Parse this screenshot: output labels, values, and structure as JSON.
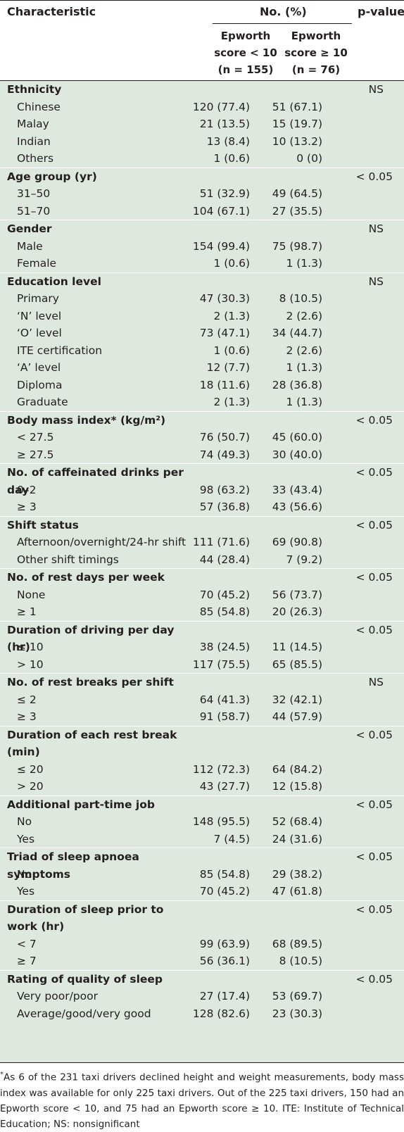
{
  "header": {
    "characteristic": "Characteristic",
    "no_pct": "No. (%)",
    "p_value": "p-value",
    "col1_line1": "Epworth",
    "col1_line2": "score < 10",
    "col1_line3": "(n = 155)",
    "col2_line1": "Epworth",
    "col2_line2": "score ≥ 10",
    "col2_line3": "(n = 76)"
  },
  "rows": [
    {
      "type": "cat",
      "label": "Ethnicity",
      "p": "NS"
    },
    {
      "type": "item",
      "label": "Chinese",
      "c1": "120 (77.4)",
      "c2": "51 (67.1)"
    },
    {
      "type": "item",
      "label": "Malay",
      "c1": "21 (13.5)",
      "c2": "15 (19.7)"
    },
    {
      "type": "item",
      "label": "Indian",
      "c1": "13 (8.4)",
      "c2": "10 (13.2)"
    },
    {
      "type": "item",
      "label": "Others",
      "c1": "1 (0.6)",
      "c2": "0 (0)"
    },
    {
      "type": "cat",
      "label": "Age group (yr)",
      "p": "< 0.05"
    },
    {
      "type": "item",
      "label": "31–50",
      "c1": "51 (32.9)",
      "c2": "49 (64.5)"
    },
    {
      "type": "item",
      "label": "51–70",
      "c1": "104 (67.1)",
      "c2": "27 (35.5)"
    },
    {
      "type": "cat",
      "label": "Gender",
      "p": "NS"
    },
    {
      "type": "item",
      "label": "Male",
      "c1": "154 (99.4)",
      "c2": "75 (98.7)"
    },
    {
      "type": "item",
      "label": "Female",
      "c1": "1 (0.6)",
      "c2": "1 (1.3)"
    },
    {
      "type": "cat",
      "label": "Education level",
      "p": "NS"
    },
    {
      "type": "item",
      "label": "Primary",
      "c1": "47 (30.3)",
      "c2": "8 (10.5)"
    },
    {
      "type": "item",
      "label": "‘N’ level",
      "c1": "2 (1.3)",
      "c2": "2 (2.6)"
    },
    {
      "type": "item",
      "label": "‘O’ level",
      "c1": "73 (47.1)",
      "c2": "34 (44.7)"
    },
    {
      "type": "item",
      "label": "ITE certification",
      "c1": "1 (0.6)",
      "c2": "2 (2.6)"
    },
    {
      "type": "item",
      "label": "‘A’ level",
      "c1": "12 (7.7)",
      "c2": "1 (1.3)"
    },
    {
      "type": "item",
      "label": "Diploma",
      "c1": "18 (11.6)",
      "c2": "28 (36.8)"
    },
    {
      "type": "item",
      "label": "Graduate",
      "c1": "2 (1.3)",
      "c2": "1 (1.3)"
    },
    {
      "type": "cat",
      "label": "Body mass index* (kg/m²)",
      "p": "< 0.05"
    },
    {
      "type": "item",
      "label": "< 27.5",
      "c1": "76 (50.7)",
      "c2": "45 (60.0)"
    },
    {
      "type": "item",
      "label": "≥ 27.5",
      "c1": "74 (49.3)",
      "c2": "30 (40.0)"
    },
    {
      "type": "cat",
      "label": "No. of caffeinated drinks per day",
      "p": "< 0.05"
    },
    {
      "type": "item",
      "label": "0–2",
      "c1": "98 (63.2)",
      "c2": "33 (43.4)"
    },
    {
      "type": "item",
      "label": "≥ 3",
      "c1": "57 (36.8)",
      "c2": "43 (56.6)"
    },
    {
      "type": "cat",
      "label": "Shift status",
      "p": "< 0.05"
    },
    {
      "type": "item",
      "label": "Afternoon/overnight/24-hr shift",
      "c1": "111 (71.6)",
      "c2": "69 (90.8)"
    },
    {
      "type": "item",
      "label": "Other shift timings",
      "c1": "44 (28.4)",
      "c2": "7 (9.2)"
    },
    {
      "type": "cat",
      "label": "No. of rest days per week",
      "p": "< 0.05"
    },
    {
      "type": "item",
      "label": "None",
      "c1": "70 (45.2)",
      "c2": "56 (73.7)"
    },
    {
      "type": "item",
      "label": "≥ 1",
      "c1": "85 (54.8)",
      "c2": "20 (26.3)"
    },
    {
      "type": "cat",
      "label": "Duration of driving per day (hr)",
      "p": "< 0.05"
    },
    {
      "type": "item",
      "label": "≤ 10",
      "c1": "38 (24.5)",
      "c2": "11 (14.5)"
    },
    {
      "type": "item",
      "label": "> 10",
      "c1": "117 (75.5)",
      "c2": "65 (85.5)"
    },
    {
      "type": "cat",
      "label": "No. of rest breaks per shift",
      "p": "NS"
    },
    {
      "type": "item",
      "label": "≤ 2",
      "c1": "64 (41.3)",
      "c2": "32 (42.1)"
    },
    {
      "type": "item",
      "label": "≥ 3",
      "c1": "91 (58.7)",
      "c2": "44 (57.9)"
    },
    {
      "type": "cat2",
      "label": "Duration of each rest break (min)",
      "p": "< 0.05"
    },
    {
      "type": "item",
      "label": "≤ 20",
      "c1": "112 (72.3)",
      "c2": "64 (84.2)"
    },
    {
      "type": "item",
      "label": "> 20",
      "c1": "43 (27.7)",
      "c2": "12 (15.8)"
    },
    {
      "type": "cat",
      "label": "Additional part-time job",
      "p": "< 0.05"
    },
    {
      "type": "item",
      "label": "No",
      "c1": "148 (95.5)",
      "c2": "52 (68.4)"
    },
    {
      "type": "item",
      "label": "Yes",
      "c1": "7 (4.5)",
      "c2": "24 (31.6)"
    },
    {
      "type": "cat",
      "label": "Triad of sleep apnoea symptoms",
      "p": "< 0.05"
    },
    {
      "type": "item",
      "label": "No",
      "c1": "85 (54.8)",
      "c2": "29 (38.2)"
    },
    {
      "type": "item",
      "label": "Yes",
      "c1": "70 (45.2)",
      "c2": "47 (61.8)"
    },
    {
      "type": "cat2",
      "label": "Duration of sleep prior to work (hr)",
      "p": "< 0.05"
    },
    {
      "type": "item",
      "label": "< 7",
      "c1": "99 (63.9)",
      "c2": "68 (89.5)"
    },
    {
      "type": "item",
      "label": "≥ 7",
      "c1": "56 (36.1)",
      "c2": "8 (10.5)"
    },
    {
      "type": "cat",
      "label": "Rating of quality of sleep",
      "p": "< 0.05"
    },
    {
      "type": "item",
      "label": "Very poor/poor",
      "c1": "27 (17.4)",
      "c2": "53 (69.7)"
    },
    {
      "type": "item",
      "label": "Average/good/very good",
      "c1": "128 (82.6)",
      "c2": "23 (30.3)"
    }
  ],
  "footnote": {
    "marker": "*",
    "text": "As 6 of the 231 taxi drivers declined height and weight measurements, body mass index was available for only 225 taxi drivers. Out of the 225 taxi drivers, 150 had an Epworth score < 10, and 75 had an Epworth score ≥ 10. ITE: Institute of Technical Education; NS: nonsignificant"
  }
}
